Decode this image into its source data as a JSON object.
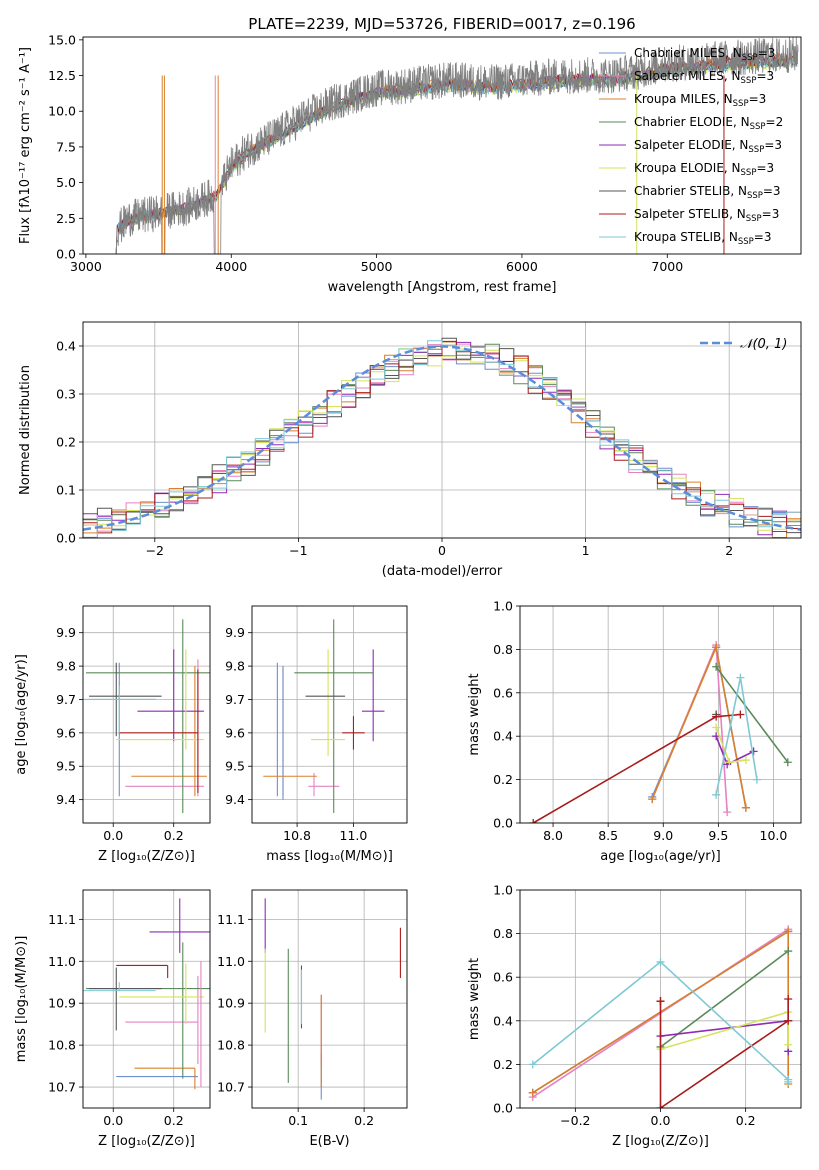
{
  "figure_title": "PLATE=2239, MJD=53726, FIBERID=0017, z=0.196",
  "models": [
    {
      "name": "Chabrier MILES, N",
      "sub": "SSP",
      "suffix": "=3",
      "color": "#6e8fcf"
    },
    {
      "name": "Salpeter MILES, N",
      "sub": "SSP",
      "suffix": "=3",
      "color": "#e582c2"
    },
    {
      "name": "Kroupa MILES, N",
      "sub": "SSP",
      "suffix": "=3",
      "color": "#d9802c"
    },
    {
      "name": "Chabrier ELODIE, N",
      "sub": "SSP",
      "suffix": "=2",
      "color": "#5a8a5a"
    },
    {
      "name": "Salpeter ELODIE, N",
      "sub": "SSP",
      "suffix": "=3",
      "color": "#8e2cb5"
    },
    {
      "name": "Kroupa ELODIE, N",
      "sub": "SSP",
      "suffix": "=3",
      "color": "#d6e35a"
    },
    {
      "name": "Chabrier STELIB, N",
      "sub": "SSP",
      "suffix": "=3",
      "color": "#555555"
    },
    {
      "name": "Salpeter STELIB, N",
      "sub": "SSP",
      "suffix": "=3",
      "color": "#a81c1c"
    },
    {
      "name": "Kroupa STELIB, N",
      "sub": "SSP",
      "suffix": "=3",
      "color": "#7ec9d4"
    }
  ],
  "chart_data": [
    {
      "id": "spectrum",
      "type": "line",
      "xlabel": "wavelength [Angstrom, rest frame]",
      "ylabel": "Flux [fλ10⁻¹⁷ erg cm⁻² s⁻¹ A⁻¹]",
      "xlim": [
        2980,
        7920
      ],
      "ylim": [
        0,
        15.2
      ],
      "xticks": [
        3000,
        4000,
        5000,
        6000,
        7000
      ],
      "yticks": [
        0.0,
        2.5,
        5.0,
        7.5,
        10.0,
        12.5,
        15.0
      ],
      "ytick_labels": [
        "0.0",
        "2.5",
        "5.0",
        "7.5",
        "10.0",
        "12.5",
        "15.0"
      ],
      "observed_color": "#808080",
      "continuum_x": [
        3200,
        3300,
        3500,
        3700,
        3900,
        4000,
        4100,
        4300,
        4500,
        4700,
        5000,
        5200,
        5500,
        5800,
        6000,
        6300,
        6600,
        6800,
        7000,
        7400,
        7900
      ],
      "continuum_y": [
        1.6,
        2.5,
        2.9,
        3.3,
        4.2,
        6.2,
        7.2,
        8.3,
        9.6,
        10.6,
        11.6,
        11.8,
        12.2,
        12.0,
        12.2,
        12.5,
        12.5,
        12.8,
        13.3,
        13.7,
        14.0
      ],
      "grid": false,
      "legend": "upper right"
    },
    {
      "id": "residual_histogram",
      "type": "histogram",
      "xlabel": "(data-model)/error",
      "ylabel": "Normed distribution",
      "xlim": [
        -2.5,
        2.5
      ],
      "ylim": [
        0,
        0.45
      ],
      "xticks": [
        -2,
        -1,
        0,
        1,
        2
      ],
      "xtick_labels": [
        "−2",
        "−1",
        "0",
        "1",
        "2"
      ],
      "yticks": [
        0.0,
        0.1,
        0.2,
        0.3,
        0.4
      ],
      "ytick_labels": [
        "0.0",
        "0.1",
        "0.2",
        "0.3",
        "0.4"
      ],
      "bin_width": 0.1,
      "grid": true,
      "legend": "upper right",
      "reference_curve": {
        "label": "𝒩(0, 1)",
        "color": "#5b8ddb",
        "dash": true
      }
    },
    {
      "id": "age_vs_Z",
      "type": "errorbar",
      "xlabel": "Z [log₁₀(Z/Z⊙)]",
      "ylabel": "age  [log₁₀(age/yr)]",
      "xlim": [
        -0.1,
        0.32
      ],
      "ylim": [
        9.33,
        9.98
      ],
      "xticks": [
        0.0,
        0.2
      ],
      "xtick_labels": [
        "0.0",
        "0.2"
      ],
      "yticks": [
        9.4,
        9.5,
        9.6,
        9.7,
        9.8,
        9.9
      ],
      "ytick_labels": [
        "9.4",
        "9.5",
        "9.6",
        "9.7",
        "9.8",
        "9.9"
      ],
      "grid": true,
      "points": [
        {
          "model": 0,
          "x": 0.02,
          "xerr": [
            0.1,
            0.12
          ],
          "y": 9.7,
          "yerr": [
            0.29,
            0.11
          ]
        },
        {
          "model": 1,
          "x": 0.28,
          "xerr": [
            0.24,
            0.02
          ],
          "y": 9.44,
          "yerr": [
            0.03,
            0.38
          ]
        },
        {
          "model": 2,
          "x": 0.27,
          "xerr": [
            0.21,
            0.04
          ],
          "y": 9.47,
          "yerr": [
            0.06,
            0.33
          ]
        },
        {
          "model": 3,
          "x": 0.23,
          "xerr": [
            0.32,
            0.09
          ],
          "y": 9.78,
          "yerr": [
            0.42,
            0.16
          ]
        },
        {
          "model": 4,
          "x": 0.2,
          "xerr": [
            0.12,
            0.1
          ],
          "y": 9.665,
          "yerr": [
            0.09,
            0.185
          ]
        },
        {
          "model": 5,
          "x": 0.24,
          "xerr": [
            0.23,
            0.06
          ],
          "y": 9.58,
          "yerr": [
            0.03,
            0.27
          ]
        },
        {
          "model": 6,
          "x": 0.01,
          "xerr": [
            0.09,
            0.15
          ],
          "y": 9.71,
          "yerr": [
            0.12,
            0.1
          ]
        },
        {
          "model": 7,
          "x": 0.28,
          "xerr": [
            0.26,
            0.0
          ],
          "y": 9.6,
          "yerr": [
            0.18,
            0.19
          ]
        },
        {
          "model": 8,
          "x": 0.02,
          "xerr": [
            0.12,
            0.12
          ],
          "y": 9.7,
          "yerr": [
            0.1,
            0.04
          ]
        }
      ]
    },
    {
      "id": "age_vs_mass",
      "type": "errorbar",
      "xlabel": "mass [log₁₀(M/M⊙)]",
      "ylabel": "",
      "xlim": [
        10.64,
        11.19
      ],
      "ylim": [
        9.33,
        9.98
      ],
      "xticks": [
        10.8,
        11.0
      ],
      "xtick_labels": [
        "10.8",
        "11.0"
      ],
      "yticks": [
        9.4,
        9.5,
        9.6,
        9.7,
        9.8,
        9.9
      ],
      "ytick_labels": [
        "9.4",
        "9.5",
        "9.6",
        "9.7",
        "9.8",
        "9.9"
      ],
      "grid": true,
      "points": [
        {
          "model": 0,
          "x": 10.73,
          "xerr": [
            0.0,
            0.0
          ],
          "y": 9.6,
          "yerr": [
            0.19,
            0.21
          ]
        },
        {
          "model": 1,
          "x": 10.86,
          "xerr": [
            0.02,
            0.09
          ],
          "y": 9.44,
          "yerr": [
            0.03,
            0.04
          ]
        },
        {
          "model": 2,
          "x": 10.75,
          "xerr": [
            0.07,
            0.12
          ],
          "y": 9.47,
          "yerr": [
            0.06,
            0.33
          ]
        },
        {
          "model": 3,
          "x": 10.93,
          "xerr": [
            0.0,
            0.0
          ],
          "y": 9.6,
          "yerr": [
            0.24,
            0.34
          ]
        },
        {
          "model": 4,
          "x": 11.07,
          "xerr": [
            0.04,
            0.04
          ],
          "y": 9.665,
          "yerr": [
            0.09,
            0.185
          ]
        },
        {
          "model": 5,
          "x": 10.91,
          "xerr": [
            0.06,
            0.06
          ],
          "y": 9.58,
          "yerr": [
            0.05,
            0.27
          ]
        },
        {
          "model": 6,
          "x": 10.93,
          "xerr": [
            0.0,
            0.0
          ],
          "y": 9.71,
          "yerr": [
            0.0,
            0.0
          ]
        },
        {
          "model": 7,
          "x": 11.0,
          "xerr": [
            0.04,
            0.04
          ],
          "y": 9.6,
          "yerr": [
            0.05,
            0.05
          ]
        },
        {
          "model": 8,
          "x": 10.93,
          "xerr": [
            0.0,
            0.0
          ],
          "y": 9.71,
          "yerr": [
            0.0,
            0.0
          ]
        },
        {
          "model": 3,
          "x": 10.93,
          "xerr": [
            0.14,
            0.14
          ],
          "y": 9.78,
          "yerr": [
            0.0,
            0.0
          ]
        },
        {
          "model": 6,
          "x": 10.93,
          "xerr": [
            0.1,
            0.04
          ],
          "y": 9.71,
          "yerr": [
            0.0,
            0.0
          ]
        },
        {
          "model": 0,
          "x": 10.75,
          "xerr": [
            0.0,
            0.0
          ],
          "y": 9.6,
          "yerr": [
            0.2,
            0.2
          ]
        }
      ]
    },
    {
      "id": "massweight_vs_age",
      "type": "line",
      "xlabel": "age  [log₁₀(age/yr)]",
      "ylabel": "mass weight",
      "xlim": [
        7.7,
        10.25
      ],
      "ylim": [
        0,
        1.0
      ],
      "xticks": [
        8.0,
        8.5,
        9.0,
        9.5,
        10.0
      ],
      "xtick_labels": [
        "8.0",
        "8.5",
        "9.0",
        "9.5",
        "10.0"
      ],
      "yticks": [
        0.0,
        0.2,
        0.4,
        0.6,
        0.8,
        1.0
      ],
      "ytick_labels": [
        "0.0",
        "0.2",
        "0.4",
        "0.6",
        "0.8",
        "1.0"
      ],
      "grid": true,
      "series": [
        {
          "model": 0,
          "x": [
            8.9,
            9.48,
            9.75
          ],
          "y": [
            0.12,
            0.81,
            0.07
          ]
        },
        {
          "model": 1,
          "x": [
            8.9,
            9.48,
            9.58
          ],
          "y": [
            0.11,
            0.82,
            0.05
          ]
        },
        {
          "model": 2,
          "x": [
            8.9,
            9.48,
            9.75
          ],
          "y": [
            0.11,
            0.81,
            0.07
          ]
        },
        {
          "model": 3,
          "x": [
            9.48,
            10.13
          ],
          "y": [
            0.72,
            0.28
          ]
        },
        {
          "model": 4,
          "x": [
            9.48,
            9.58,
            9.82
          ],
          "y": [
            0.4,
            0.27,
            0.33
          ]
        },
        {
          "model": 5,
          "x": [
            9.48,
            9.6,
            9.75
          ],
          "y": [
            0.44,
            0.28,
            0.29
          ]
        },
        {
          "model": 6,
          "x": [
            9.48
          ],
          "y": [
            0.5
          ]
        },
        {
          "model": 7,
          "x": [
            7.82,
            9.48,
            9.7
          ],
          "y": [
            0.0,
            0.49,
            0.5
          ]
        },
        {
          "model": 8,
          "x": [
            9.48,
            9.7,
            9.85
          ],
          "y": [
            0.13,
            0.67,
            0.2
          ]
        }
      ]
    },
    {
      "id": "mass_vs_Z",
      "type": "errorbar",
      "xlabel": "Z [log₁₀(Z/Z⊙)]",
      "ylabel": "mass [log₁₀(M/M⊙)]",
      "xlim": [
        -0.1,
        0.32
      ],
      "ylim": [
        10.65,
        11.17
      ],
      "xticks": [
        0.0,
        0.2
      ],
      "xtick_labels": [
        "0.0",
        "0.2"
      ],
      "yticks": [
        10.7,
        10.8,
        10.9,
        11.0,
        11.1
      ],
      "ytick_labels": [
        "10.7",
        "10.8",
        "10.9",
        "11.0",
        "11.1"
      ],
      "grid": true,
      "points": [
        {
          "model": 0,
          "x": 0.28,
          "xerr": [
            0.27,
            0.0
          ],
          "y": 10.725,
          "yerr": [
            0.0,
            0.0
          ]
        },
        {
          "model": 1,
          "x": 0.28,
          "xerr": [
            0.24,
            0.0
          ],
          "y": 10.855,
          "yerr": [
            0.1,
            0.11
          ]
        },
        {
          "model": 2,
          "x": 0.27,
          "xerr": [
            0.2,
            0.0
          ],
          "y": 10.745,
          "yerr": [
            0.05,
            0.0
          ]
        },
        {
          "model": 3,
          "x": 0.23,
          "xerr": [
            0.32,
            0.09
          ],
          "y": 10.935,
          "yerr": [
            0.215,
            0.11
          ]
        },
        {
          "model": 4,
          "x": 0.22,
          "xerr": [
            0.1,
            0.1
          ],
          "y": 11.07,
          "yerr": [
            0.05,
            0.08
          ]
        },
        {
          "model": 5,
          "x": 0.24,
          "xerr": [
            0.22,
            0.06
          ],
          "y": 10.915,
          "yerr": [
            0.065,
            0.08
          ]
        },
        {
          "model": 6,
          "x": 0.01,
          "xerr": [
            0.09,
            0.15
          ],
          "y": 10.935,
          "yerr": [
            0.1,
            0.05
          ]
        },
        {
          "model": 7,
          "x": 0.18,
          "xerr": [
            0.17,
            0.0
          ],
          "y": 10.99,
          "yerr": [
            0.03,
            0.0
          ]
        },
        {
          "model": 8,
          "x": 0.02,
          "xerr": [
            0.12,
            0.12
          ],
          "y": 10.93,
          "yerr": [
            0.0,
            0.02
          ]
        },
        {
          "model": 1,
          "x": 0.29,
          "xerr": [
            0.0,
            0.0
          ],
          "y": 10.9,
          "yerr": [
            0.2,
            0.1
          ]
        }
      ]
    },
    {
      "id": "mass_vs_ebv",
      "type": "errorbar",
      "xlabel": "E(B-V)",
      "ylabel": "",
      "xlim": [
        0.03,
        0.265
      ],
      "ylim": [
        10.65,
        11.17
      ],
      "xticks": [
        0.1,
        0.2
      ],
      "xtick_labels": [
        "0.1",
        "0.2"
      ],
      "yticks": [
        10.7,
        10.8,
        10.9,
        11.0,
        11.1
      ],
      "ytick_labels": [
        "10.7",
        "10.8",
        "10.9",
        "11.0",
        "11.1"
      ],
      "grid": true,
      "points": [
        {
          "model": 0,
          "x": 0.135,
          "xerr": [
            0.0,
            0.0
          ],
          "y": 10.78,
          "yerr": [
            0.11,
            0.0
          ]
        },
        {
          "model": 1,
          "x": 0.135,
          "xerr": [
            0.0,
            0.0
          ],
          "y": 10.86,
          "yerr": [
            0.11,
            0.06
          ]
        },
        {
          "model": 2,
          "x": 0.135,
          "xerr": [
            0.0,
            0.0
          ],
          "y": 10.8,
          "yerr": [
            0.1,
            0.12
          ]
        },
        {
          "model": 3,
          "x": 0.085,
          "xerr": [
            0.0,
            0.0
          ],
          "y": 10.85,
          "yerr": [
            0.14,
            0.18
          ]
        },
        {
          "model": 4,
          "x": 0.05,
          "xerr": [
            0.0,
            0.0
          ],
          "y": 11.07,
          "yerr": [
            0.05,
            0.08
          ]
        },
        {
          "model": 5,
          "x": 0.05,
          "xerr": [
            0.0,
            0.0
          ],
          "y": 10.95,
          "yerr": [
            0.12,
            0.08
          ]
        },
        {
          "model": 6,
          "x": 0.105,
          "xerr": [
            0.0,
            0.0
          ],
          "y": 10.91,
          "yerr": [
            0.07,
            0.08
          ]
        },
        {
          "model": 7,
          "x": 0.255,
          "xerr": [
            0.0,
            0.0
          ],
          "y": 11.02,
          "yerr": [
            0.06,
            0.06
          ]
        },
        {
          "model": 8,
          "x": 0.105,
          "xerr": [
            0.0,
            0.0
          ],
          "y": 10.91,
          "yerr": [
            0.06,
            0.07
          ]
        }
      ]
    },
    {
      "id": "massweight_vs_Z",
      "type": "line",
      "xlabel": "Z [log₁₀(Z/Z⊙)]",
      "ylabel": "mass weight",
      "xlim": [
        -0.33,
        0.33
      ],
      "ylim": [
        0,
        1.0
      ],
      "xticks": [
        -0.2,
        0.0,
        0.2
      ],
      "xtick_labels": [
        "−0.2",
        "0.0",
        "0.2"
      ],
      "yticks": [
        0.0,
        0.2,
        0.4,
        0.6,
        0.8,
        1.0
      ],
      "ytick_labels": [
        "0.0",
        "0.2",
        "0.4",
        "0.6",
        "0.8",
        "1.0"
      ],
      "grid": true,
      "series": [
        {
          "model": 0,
          "x": [
            -0.3,
            0.3
          ],
          "y": [
            0.07,
            0.81
          ]
        },
        {
          "model": 1,
          "x": [
            -0.3,
            0.3
          ],
          "y": [
            0.05,
            0.82
          ]
        },
        {
          "model": 2,
          "x": [
            -0.3,
            0.3,
            0.3
          ],
          "y": [
            0.07,
            0.81,
            0.11
          ]
        },
        {
          "model": 3,
          "x": [
            0.0,
            0.3
          ],
          "y": [
            0.28,
            0.72
          ]
        },
        {
          "model": 4,
          "x": [
            0.0,
            0.3,
            0.3
          ],
          "y": [
            0.33,
            0.4,
            0.26
          ]
        },
        {
          "model": 5,
          "x": [
            0.0,
            0.3,
            0.3
          ],
          "y": [
            0.27,
            0.44,
            0.29
          ]
        },
        {
          "model": 6,
          "x": [
            0.0
          ],
          "y": [
            0.49
          ]
        },
        {
          "model": 7,
          "x": [
            0.0,
            0.0,
            0.3,
            0.3
          ],
          "y": [
            0.49,
            0.0,
            0.4,
            0.5
          ]
        },
        {
          "model": 8,
          "x": [
            -0.3,
            0.0,
            0.3,
            0.3
          ],
          "y": [
            0.2,
            0.67,
            0.13,
            0.12
          ]
        }
      ]
    }
  ]
}
